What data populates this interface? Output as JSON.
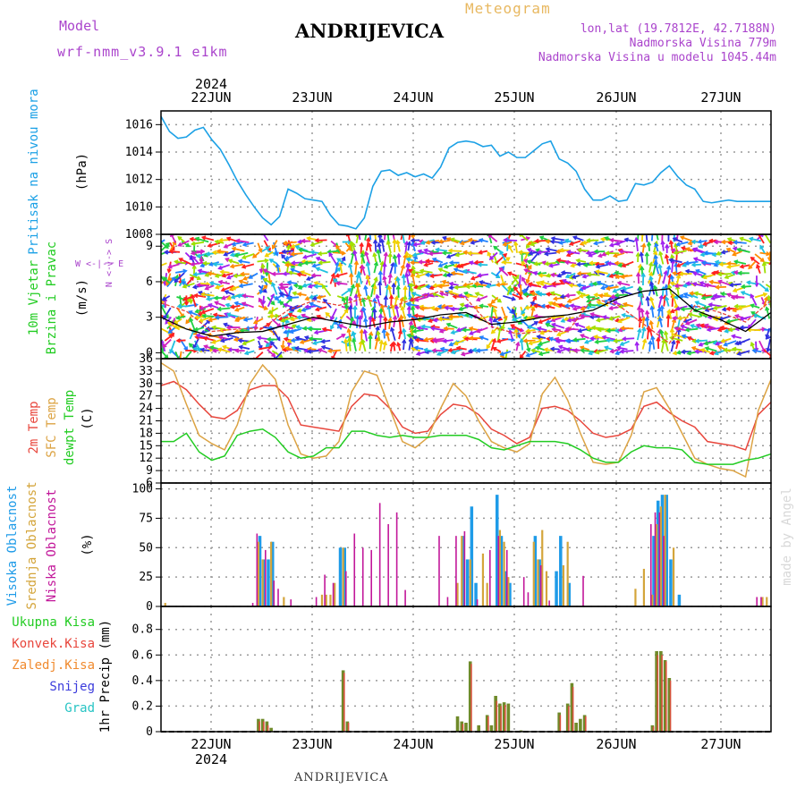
{
  "header": {
    "model_label": "Model",
    "model_name": "wrf-nmm_v3.9.1 e1km",
    "location": "ANDRIJEVICA",
    "meteogram_label": "Meteogram",
    "lonlat": "lon,lat (19.7812E, 42.7188N)",
    "elevation": "Nadmorska Visina 779m",
    "model_elevation": "Nadmorska Visina u modelu 1045.44m",
    "credit": "made by Angel",
    "footer": "ANDRIJEVICA",
    "year": "2024"
  },
  "colors": {
    "pressure": "#1ca1e6",
    "temp2m": "#e8463c",
    "sfc": "#dca343",
    "dew": "#22cc22",
    "high_cloud": "#1e9be8",
    "mid_cloud": "#d4a53b",
    "low_cloud": "#c2179a",
    "total_precip": "#22cc22",
    "convective": "#e8463c",
    "frozen": "#f08a2e",
    "snow": "#3b3bdc",
    "hail": "#27c4c4",
    "precip_bar": "#6f8a2a",
    "header_purple": "#aa44cc",
    "meteogram_orange": "#e8b860"
  },
  "chart_data": [
    {
      "type": "line",
      "id": "pressure",
      "ylabel_text": "Pritisak na nivou mora",
      "unit": "(hPa)",
      "ylim": [
        1008,
        1017
      ],
      "yticks": [
        1008,
        1010,
        1012,
        1014,
        1016
      ],
      "days": [
        "22JUN",
        "23JUN",
        "24JUN",
        "25JUN",
        "26JUN",
        "27JUN"
      ],
      "x_hours_range": [
        0,
        144
      ],
      "series": [
        {
          "x": [
            0,
            2,
            4,
            6,
            8,
            10,
            12,
            14,
            16,
            18,
            20,
            22,
            24,
            26,
            28,
            30,
            32,
            34,
            36,
            38,
            40,
            42,
            44,
            46,
            48,
            50,
            52,
            54,
            56,
            58,
            60,
            62,
            64,
            66,
            68,
            70,
            72,
            74,
            76,
            78,
            80,
            82,
            84,
            86,
            88,
            90,
            92,
            94,
            96,
            98,
            100,
            102,
            104,
            106,
            108,
            110,
            112,
            114,
            116,
            118,
            120,
            122,
            124,
            126,
            128,
            130,
            132,
            134,
            136,
            138,
            140,
            142,
            144
          ],
          "values": [
            1016.6,
            1015.5,
            1015.0,
            1015.1,
            1015.6,
            1015.8,
            1014.9,
            1014.2,
            1013.1,
            1011.9,
            1010.9,
            1010.0,
            1009.2,
            1008.7,
            1009.3,
            1011.3,
            1011.0,
            1010.6,
            1010.5,
            1010.4,
            1009.4,
            1008.7,
            1008.6,
            1008.4,
            1009.2,
            1011.5,
            1012.6,
            1012.7,
            1012.3,
            1012.5,
            1012.2,
            1012.4,
            1012.1,
            1012.9,
            1014.3,
            1014.7,
            1014.8,
            1014.7,
            1014.4,
            1014.5,
            1013.7,
            1014.0,
            1013.6,
            1013.6,
            1014.1,
            1014.6,
            1014.8,
            1013.5,
            1013.2,
            1012.6,
            1011.3,
            1010.5,
            1010.5,
            1010.8,
            1010.4,
            1010.5,
            1011.7,
            1011.6,
            1011.8,
            1012.5,
            1013.0,
            1012.2,
            1011.6,
            1011.3,
            1010.4,
            1010.3,
            1010.4,
            1010.5,
            1010.4,
            1010.4,
            1010.4,
            1010.4,
            1010.4
          ]
        }
      ]
    },
    {
      "type": "line",
      "id": "wind",
      "ylabel_text": [
        "10m Vjetar",
        "Brzina i Pravac"
      ],
      "unit": "(m/s)",
      "legend_text": "W <-|-> E",
      "legend_text_v": "N <-|-> S",
      "ylim": [
        -0.5,
        10
      ],
      "yticks": [
        0,
        3,
        6,
        9
      ],
      "barbs": "colored wind arrows filling the panel",
      "series": [
        {
          "name": "speed",
          "color": "#000000",
          "x": [
            0,
            6,
            12,
            18,
            24,
            30,
            36,
            42,
            48,
            54,
            60,
            66,
            72,
            78,
            84,
            90,
            96,
            102,
            108,
            114,
            120,
            126,
            132,
            138,
            144
          ],
          "values": [
            3.0,
            2.0,
            1.4,
            1.7,
            1.8,
            2.4,
            3.0,
            2.6,
            2.2,
            2.6,
            2.8,
            3.2,
            3.4,
            2.4,
            2.6,
            3.0,
            3.2,
            3.6,
            4.6,
            5.2,
            5.4,
            3.6,
            2.8,
            1.8,
            3.4
          ]
        },
        {
          "name": "gust",
          "color": "#e8463c",
          "x": [
            0,
            6,
            12,
            18,
            24,
            30,
            36,
            42,
            48,
            54,
            60,
            66,
            72,
            78,
            84,
            90,
            96,
            102,
            108,
            114,
            120,
            126,
            132,
            138,
            144
          ],
          "values": [
            4.2,
            3.5,
            1.8,
            2.0,
            2.1,
            3.6,
            4.4,
            4.0,
            4.6,
            3.8,
            4.6,
            5.2,
            4.6,
            2.2,
            1.6,
            1.8,
            1.8,
            4.6,
            4.0,
            2.4,
            0.8,
            4.0,
            3.4,
            2.6,
            4.4
          ]
        }
      ]
    },
    {
      "type": "line",
      "id": "temperature",
      "ylabel_text": [
        "2m Temp",
        "SFC Temp",
        "dewpt Temp"
      ],
      "unit": "(C)",
      "ylim": [
        6,
        36
      ],
      "yticks": [
        6,
        9,
        12,
        15,
        18,
        21,
        24,
        27,
        30,
        33,
        36
      ],
      "series": [
        {
          "name": "2m",
          "color": "#e8463c",
          "x": [
            0,
            3,
            6,
            9,
            12,
            15,
            18,
            21,
            24,
            27,
            30,
            33,
            36,
            39,
            42,
            45,
            48,
            51,
            54,
            57,
            60,
            63,
            66,
            69,
            72,
            75,
            78,
            81,
            84,
            87,
            90,
            93,
            96,
            99,
            102,
            105,
            108,
            111,
            114,
            117,
            120,
            123,
            126,
            129,
            132,
            135,
            138,
            141,
            144
          ],
          "values": [
            29.5,
            30.5,
            28.5,
            25.0,
            22.0,
            21.5,
            23.5,
            28.5,
            29.5,
            29.5,
            26.5,
            20.0,
            19.5,
            19.0,
            18.5,
            24.5,
            27.5,
            27.0,
            24.0,
            19.5,
            18.0,
            18.5,
            22.5,
            25.0,
            24.5,
            22.5,
            19.0,
            17.5,
            15.5,
            17.0,
            24.0,
            24.5,
            23.5,
            21.0,
            18.0,
            17.0,
            17.5,
            19.0,
            24.5,
            25.5,
            23.0,
            21.0,
            19.5,
            16.0,
            15.5,
            15.0,
            14.0,
            22.5,
            25.5
          ]
        },
        {
          "name": "SFC",
          "color": "#dca343",
          "x": [
            0,
            3,
            6,
            9,
            12,
            15,
            18,
            21,
            24,
            27,
            30,
            33,
            36,
            39,
            42,
            45,
            48,
            51,
            54,
            57,
            60,
            63,
            66,
            69,
            72,
            75,
            78,
            81,
            84,
            87,
            90,
            93,
            96,
            99,
            102,
            105,
            108,
            111,
            114,
            117,
            120,
            123,
            126,
            129,
            132,
            135,
            138,
            141,
            144
          ],
          "values": [
            35.0,
            33.0,
            25.0,
            17.5,
            15.5,
            14.0,
            20.0,
            30.0,
            34.5,
            31.0,
            20.0,
            13.0,
            12.0,
            12.5,
            16.0,
            28.0,
            33.0,
            32.0,
            24.0,
            16.0,
            14.5,
            17.0,
            24.0,
            30.0,
            27.0,
            21.0,
            16.0,
            14.5,
            13.5,
            15.5,
            27.5,
            31.5,
            26.0,
            18.0,
            11.0,
            10.5,
            11.0,
            17.5,
            28.0,
            29.0,
            24.0,
            18.0,
            12.0,
            10.5,
            9.5,
            9.0,
            7.5,
            23.5,
            31.0
          ]
        },
        {
          "name": "dewpt",
          "color": "#22cc22",
          "x": [
            0,
            3,
            6,
            9,
            12,
            15,
            18,
            21,
            24,
            27,
            30,
            33,
            36,
            39,
            42,
            45,
            48,
            51,
            54,
            57,
            60,
            63,
            66,
            69,
            72,
            75,
            78,
            81,
            84,
            87,
            90,
            93,
            96,
            99,
            102,
            105,
            108,
            111,
            114,
            117,
            120,
            123,
            126,
            129,
            132,
            135,
            138,
            141,
            144
          ],
          "values": [
            16.0,
            16.0,
            18.0,
            13.5,
            11.5,
            12.5,
            17.5,
            18.5,
            19.0,
            17.0,
            13.5,
            12.0,
            12.5,
            14.5,
            14.5,
            18.5,
            18.5,
            17.5,
            17.0,
            17.5,
            17.0,
            17.0,
            17.5,
            17.5,
            17.5,
            16.5,
            14.5,
            14.0,
            15.0,
            16.0,
            16.0,
            16.0,
            15.5,
            14.0,
            12.0,
            11.0,
            11.0,
            13.5,
            15.0,
            14.5,
            14.5,
            14.0,
            11.0,
            10.5,
            10.5,
            10.5,
            11.5,
            12.0,
            13.0
          ]
        }
      ]
    },
    {
      "type": "bar",
      "id": "clouds",
      "ylabel_text": [
        "Visoka Oblacnost",
        "Srednja Oblacnost",
        "Niska Oblacnost"
      ],
      "unit": "(%)",
      "ylim": [
        0,
        105
      ],
      "yticks": [
        0,
        25,
        50,
        75,
        100
      ],
      "series": [
        {
          "name": "high",
          "color": "#1e9be8",
          "x": [
            23,
            24,
            25,
            26,
            42,
            43,
            71,
            72,
            73,
            74,
            79,
            80,
            81,
            82,
            88,
            89,
            93,
            94,
            96,
            116,
            117,
            118,
            119,
            120,
            122
          ],
          "values": [
            60,
            40,
            40,
            55,
            50,
            50,
            60,
            40,
            85,
            20,
            95,
            60,
            30,
            20,
            60,
            40,
            30,
            60,
            20,
            60,
            90,
            95,
            95,
            40,
            10
          ]
        },
        {
          "name": "mid",
          "color": "#d4a53b",
          "x": [
            1,
            23,
            24,
            26,
            29,
            38,
            39,
            40,
            41,
            43,
            70,
            71,
            73,
            76,
            77,
            80,
            81,
            82,
            88,
            89,
            90,
            91,
            95,
            96,
            112,
            114,
            116,
            117,
            118,
            119,
            121,
            142,
            143
          ],
          "values": [
            3,
            55,
            40,
            55,
            8,
            10,
            10,
            10,
            20,
            50,
            20,
            60,
            40,
            45,
            20,
            65,
            55,
            25,
            55,
            40,
            65,
            30,
            35,
            55,
            15,
            32,
            10,
            70,
            85,
            95,
            50,
            8,
            8
          ]
        },
        {
          "name": "low",
          "color": "#c2179a",
          "x": [
            22,
            23,
            25,
            27,
            28,
            31,
            37,
            39,
            41,
            44,
            46,
            48,
            50,
            52,
            54,
            56,
            58,
            66,
            68,
            70,
            72,
            75,
            78,
            80,
            82,
            86,
            87,
            90,
            92,
            100,
            116,
            117,
            118,
            119,
            141,
            142
          ],
          "values": [
            3,
            62,
            48,
            22,
            15,
            6,
            8,
            27,
            20,
            30,
            62,
            50,
            48,
            88,
            70,
            80,
            14,
            60,
            8,
            60,
            64,
            6,
            48,
            60,
            48,
            25,
            12,
            35,
            5,
            26,
            70,
            80,
            80,
            60,
            8,
            8
          ]
        }
      ]
    },
    {
      "type": "bar",
      "id": "precip",
      "ylabel_text": "1hr Precip",
      "unit": "(mm)",
      "ylim": [
        0,
        0.98
      ],
      "yticks": [
        0,
        0.2,
        0.4,
        0.6,
        0.8
      ],
      "legend": [
        "Ukupna Kisa",
        "Konvek.Kisa",
        "Zaledj.Kisa",
        "Snijeg",
        "Grad"
      ],
      "series": [
        {
          "name": "total",
          "color": "#6f8a2a",
          "x": [
            23,
            24,
            25,
            26,
            43,
            44,
            70,
            71,
            72,
            73,
            75,
            77,
            78,
            79,
            80,
            81,
            82,
            85,
            94,
            96,
            97,
            98,
            99,
            100,
            116,
            117,
            118,
            119,
            120
          ],
          "values": [
            0.1,
            0.1,
            0.08,
            0.03,
            0.48,
            0.08,
            0.12,
            0.08,
            0.07,
            0.55,
            0.05,
            0.13,
            0.05,
            0.28,
            0.22,
            0.23,
            0.22,
            0.01,
            0.15,
            0.22,
            0.38,
            0.07,
            0.1,
            0.13,
            0.05,
            0.63,
            0.63,
            0.56,
            0.42
          ]
        },
        {
          "name": "convective",
          "color": "#e8463c",
          "x": [
            23,
            24,
            25,
            43,
            44,
            71,
            73,
            77,
            79,
            80,
            81,
            94,
            96,
            97,
            100,
            116,
            117,
            118,
            119,
            120
          ],
          "values": [
            0.08,
            0.08,
            0.05,
            0.46,
            0.07,
            0.06,
            0.53,
            0.12,
            0.24,
            0.2,
            0.21,
            0.13,
            0.2,
            0.35,
            0.12,
            0.04,
            0.6,
            0.6,
            0.55,
            0.4
          ]
        }
      ]
    }
  ]
}
